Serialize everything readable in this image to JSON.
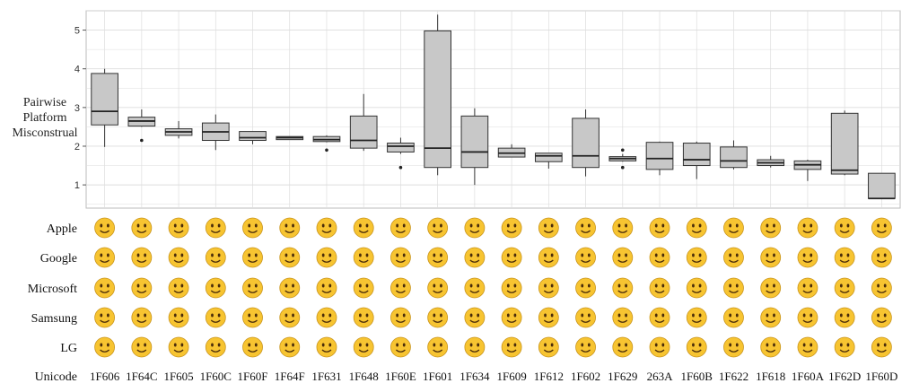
{
  "chart_data": {
    "type": "boxplot",
    "ylabel_lines": [
      "Pairwise",
      "Platform",
      "Misconstrual"
    ],
    "y_ticks": [
      1,
      2,
      3,
      4,
      5
    ],
    "ylim": [
      0.4,
      5.5
    ],
    "grid": true,
    "categories": [
      "1F606",
      "1F64C",
      "1F605",
      "1F60C",
      "1F60F",
      "1F64F",
      "1F631",
      "1F648",
      "1F60E",
      "1F601",
      "1F634",
      "1F609",
      "1F612",
      "1F602",
      "1F629",
      "263A",
      "1F60B",
      "1F622",
      "1F618",
      "1F60A",
      "1F62D",
      "1F60D"
    ],
    "boxes": [
      {
        "whislo": 1.98,
        "q1": 2.55,
        "med": 2.9,
        "q3": 3.88,
        "whishi": 4.0,
        "fliers": []
      },
      {
        "whislo": 2.5,
        "q1": 2.52,
        "med": 2.65,
        "q3": 2.75,
        "whishi": 2.95,
        "fliers": [
          2.15
        ]
      },
      {
        "whislo": 2.2,
        "q1": 2.28,
        "med": 2.37,
        "q3": 2.45,
        "whishi": 2.65,
        "fliers": []
      },
      {
        "whislo": 1.9,
        "q1": 2.15,
        "med": 2.37,
        "q3": 2.6,
        "whishi": 2.82,
        "fliers": []
      },
      {
        "whislo": 2.05,
        "q1": 2.15,
        "med": 2.22,
        "q3": 2.38,
        "whishi": 2.38,
        "fliers": []
      },
      {
        "whislo": 2.17,
        "q1": 2.17,
        "med": 2.22,
        "q3": 2.25,
        "whishi": 2.25,
        "fliers": []
      },
      {
        "whislo": 2.1,
        "q1": 2.12,
        "med": 2.17,
        "q3": 2.25,
        "whishi": 2.28,
        "fliers": [
          1.9
        ]
      },
      {
        "whislo": 1.88,
        "q1": 1.95,
        "med": 2.15,
        "q3": 2.78,
        "whishi": 3.35,
        "fliers": []
      },
      {
        "whislo": 1.8,
        "q1": 1.85,
        "med": 2.0,
        "q3": 2.08,
        "whishi": 2.22,
        "fliers": [
          1.45
        ]
      },
      {
        "whislo": 1.25,
        "q1": 1.45,
        "med": 1.95,
        "q3": 4.98,
        "whishi": 5.4,
        "fliers": []
      },
      {
        "whislo": 1.0,
        "q1": 1.45,
        "med": 1.85,
        "q3": 2.78,
        "whishi": 2.98,
        "fliers": []
      },
      {
        "whislo": 1.72,
        "q1": 1.72,
        "med": 1.82,
        "q3": 1.95,
        "whishi": 2.05,
        "fliers": []
      },
      {
        "whislo": 1.42,
        "q1": 1.6,
        "med": 1.75,
        "q3": 1.82,
        "whishi": 1.82,
        "fliers": []
      },
      {
        "whislo": 1.22,
        "q1": 1.45,
        "med": 1.75,
        "q3": 2.72,
        "whishi": 2.95,
        "fliers": []
      },
      {
        "whislo": 1.6,
        "q1": 1.62,
        "med": 1.68,
        "q3": 1.73,
        "whishi": 1.8,
        "fliers": [
          1.45,
          1.9
        ]
      },
      {
        "whislo": 1.25,
        "q1": 1.4,
        "med": 1.68,
        "q3": 2.1,
        "whishi": 2.12,
        "fliers": []
      },
      {
        "whislo": 1.15,
        "q1": 1.5,
        "med": 1.65,
        "q3": 2.08,
        "whishi": 2.12,
        "fliers": []
      },
      {
        "whislo": 1.4,
        "q1": 1.45,
        "med": 1.62,
        "q3": 1.98,
        "whishi": 2.15,
        "fliers": []
      },
      {
        "whislo": 1.45,
        "q1": 1.5,
        "med": 1.57,
        "q3": 1.65,
        "whishi": 1.75,
        "fliers": []
      },
      {
        "whislo": 1.1,
        "q1": 1.4,
        "med": 1.52,
        "q3": 1.62,
        "whishi": 1.65,
        "fliers": []
      },
      {
        "whislo": 1.25,
        "q1": 1.28,
        "med": 1.38,
        "q3": 2.85,
        "whishi": 2.92,
        "fliers": []
      },
      {
        "whislo": 0.65,
        "q1": 0.65,
        "med": 0.65,
        "q3": 1.3,
        "whishi": 1.3,
        "fliers": []
      }
    ],
    "platform_rows": [
      "Apple",
      "Google",
      "Microsoft",
      "Samsung",
      "LG"
    ],
    "footer_label": "Unicode"
  },
  "colors": {
    "box_fill": "#c8c8c8",
    "box_stroke": "#333333",
    "grid": "#dddddd",
    "panel_border": "#bbbbbb",
    "emoji_face": "#f7c431"
  }
}
